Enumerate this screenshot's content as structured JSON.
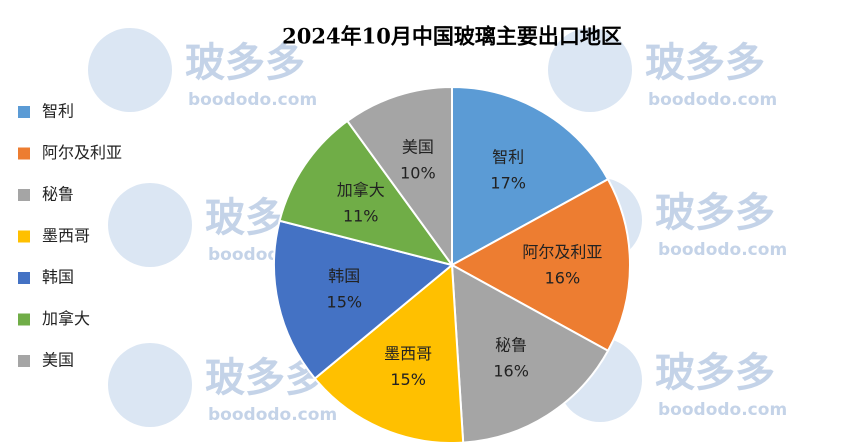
{
  "chart_data": {
    "type": "pie",
    "title": "2024年10月中国玻璃主要出口地区",
    "categories": [
      "智利",
      "阿尔及利亚",
      "秘鲁",
      "墨西哥",
      "韩国",
      "加拿大",
      "美国"
    ],
    "values": [
      17,
      16,
      16,
      15,
      15,
      11,
      10
    ],
    "value_labels": [
      "17%",
      "16%",
      "16%",
      "15%",
      "15%",
      "11%",
      "10%"
    ],
    "colors": [
      "#5b9bd5",
      "#ed7d31",
      "#a5a5a5",
      "#ffc000",
      "#4472c4",
      "#70ad47",
      "#a5a5a5"
    ],
    "legend": "left",
    "watermark": {
      "name": "玻多多",
      "url": "boododo.com"
    }
  }
}
